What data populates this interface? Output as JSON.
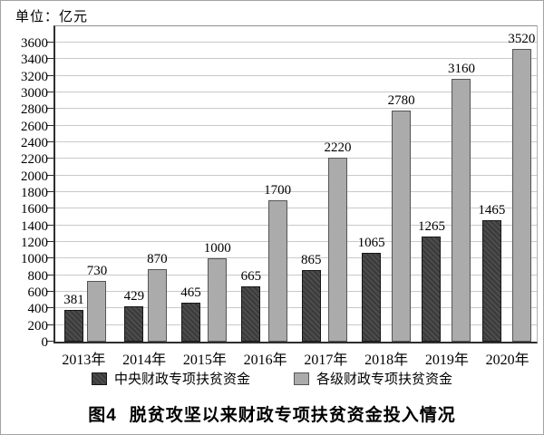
{
  "unit_label": "单位：亿元",
  "caption": {
    "prefix": "图4",
    "title": "脱贫攻坚以来财政专项扶贫资金投入情况"
  },
  "legend": [
    {
      "label": "中央财政专项扶贫资金",
      "swatch": "dark-hatch"
    },
    {
      "label": "各级财政专项扶贫资金",
      "swatch": "gray"
    }
  ],
  "colors": {
    "bar_dark": "#3a3a3a",
    "bar_dark_stripe": "#4d4d4d",
    "bar_gray": "#ababab",
    "bar_gray_border": "#555555",
    "gridline": "#c9c9c9",
    "axis": "#2e2e2e",
    "frame": "#a0a0a0",
    "text": "#000000"
  },
  "chart_data": {
    "type": "bar",
    "title": "图4 脱贫攻坚以来财政专项扶贫资金投入情况",
    "unit": "单位：亿元",
    "categories": [
      "2013年",
      "2014年",
      "2015年",
      "2016年",
      "2017年",
      "2018年",
      "2019年",
      "2020年"
    ],
    "series": [
      {
        "name": "中央财政专项扶贫资金",
        "values": [
          381,
          429,
          465,
          665,
          865,
          1065,
          1265,
          1465
        ]
      },
      {
        "name": "各级财政专项扶贫资金",
        "values": [
          730,
          870,
          1000,
          1700,
          2220,
          2780,
          3160,
          3520
        ]
      }
    ],
    "yticks": [
      0,
      200,
      400,
      600,
      800,
      1000,
      1200,
      1400,
      1600,
      1800,
      2000,
      2200,
      2400,
      2600,
      2800,
      3000,
      3200,
      3400,
      3600
    ],
    "ylim": [
      0,
      3800
    ],
    "grid": true,
    "data_labels": true,
    "legend_position": "bottom",
    "xlabel": "",
    "ylabel": "亿元"
  }
}
